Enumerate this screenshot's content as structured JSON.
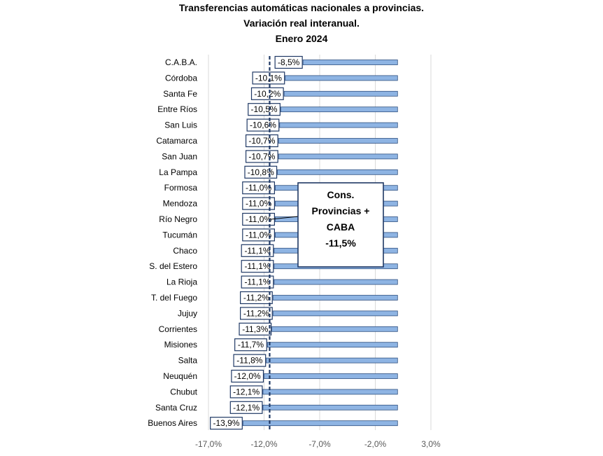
{
  "chart_data": {
    "type": "bar",
    "orientation": "horizontal",
    "title": "Transferencias automáticas nacionales a provincias.",
    "subtitle": "Variación real interanual.",
    "period": "Enero 2024",
    "xlabel": "",
    "ylabel": "",
    "xlim": [
      -17,
      3
    ],
    "x_ticks": [
      -17,
      -12,
      -7,
      -2,
      3
    ],
    "x_tick_labels": [
      "-17,0%",
      "-12,0%",
      "-7,0%",
      "-2,0%",
      "3,0%"
    ],
    "categories": [
      "C.A.B.A.",
      "Córdoba",
      "Santa Fe",
      "Entre Ríos",
      "San Luis",
      "Catamarca",
      "San Juan",
      "La Pampa",
      "Formosa",
      "Mendoza",
      "Río Negro",
      "Tucumán",
      "Chaco",
      "S. del Estero",
      "La Rioja",
      "T. del Fuego",
      "Jujuy",
      "Corrientes",
      "Misiones",
      "Salta",
      "Neuquén",
      "Chubut",
      "Santa Cruz",
      "Buenos Aires"
    ],
    "values": [
      -8.5,
      -10.1,
      -10.2,
      -10.5,
      -10.6,
      -10.7,
      -10.7,
      -10.8,
      -11.0,
      -11.0,
      -11.0,
      -11.0,
      -11.1,
      -11.1,
      -11.1,
      -11.2,
      -11.2,
      -11.3,
      -11.7,
      -11.8,
      -12.0,
      -12.1,
      -12.1,
      -13.9
    ],
    "data_labels": [
      "-8,5%",
      "-10,1%",
      "-10,2%",
      "-10,5%",
      "-10,6%",
      "-10,7%",
      "-10,7%",
      "-10,8%",
      "-11,0%",
      "-11,0%",
      "-11,0%",
      "-11,0%",
      "-11,1%",
      "-11,1%",
      "-11,1%",
      "-11,2%",
      "-11,2%",
      "-11,3%",
      "-11,7%",
      "-11,8%",
      "-12,0%",
      "-12,1%",
      "-12,1%",
      "-13,9%"
    ],
    "reference_line": {
      "value": -11.5,
      "style": "dashed"
    },
    "annotation": [
      "Cons.",
      "Provincias +",
      "CABA",
      "-11,5%"
    ],
    "bar_color": "#8EB4E3",
    "bar_edge_color": "#2F4F7F",
    "grid": "vertical"
  }
}
